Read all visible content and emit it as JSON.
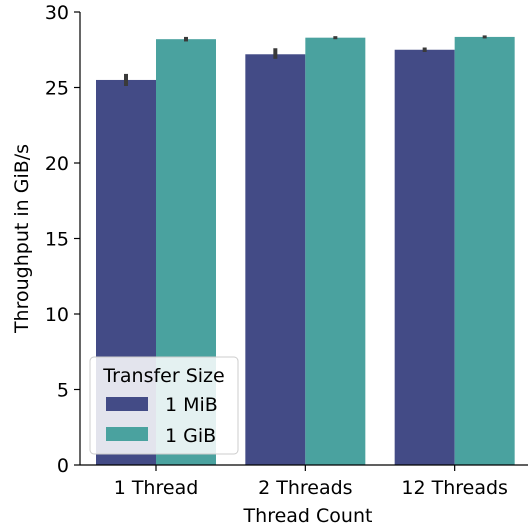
{
  "chart_data": {
    "type": "bar",
    "title": "",
    "xlabel": "Thread Count",
    "ylabel": "Throughput in GiB/s",
    "categories": [
      "1 Thread",
      "2 Threads",
      "12 Threads"
    ],
    "ylim": [
      0,
      30
    ],
    "yticks": [
      0,
      5,
      10,
      15,
      20,
      25,
      30
    ],
    "grid": false,
    "legend": {
      "title": "Transfer Size",
      "placement": "bottom-left"
    },
    "series": [
      {
        "name": "1 MiB",
        "color": "#434b86",
        "values": [
          25.5,
          27.2,
          27.5
        ],
        "error_low": [
          25.1,
          26.9,
          27.35
        ],
        "error_high": [
          25.9,
          27.6,
          27.65
        ]
      },
      {
        "name": "1 GiB",
        "color": "#4aa29f",
        "values": [
          28.2,
          28.3,
          28.35
        ],
        "error_low": [
          28.05,
          28.2,
          28.25
        ],
        "error_high": [
          28.35,
          28.4,
          28.45
        ]
      }
    ]
  }
}
